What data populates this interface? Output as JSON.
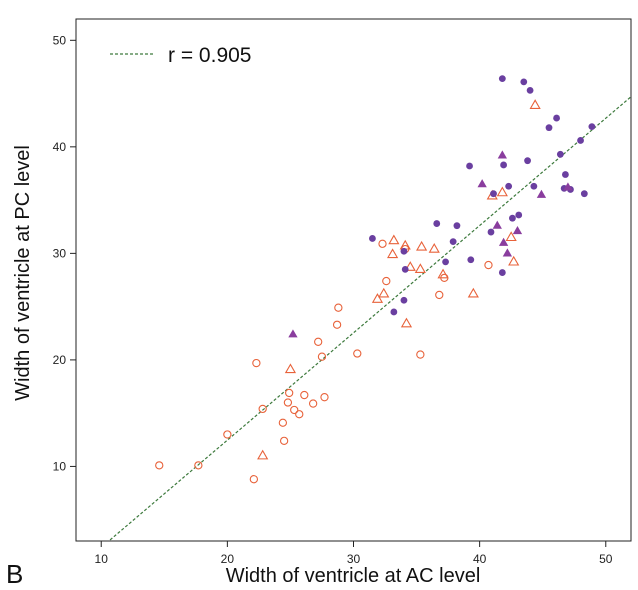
{
  "chart_data": {
    "type": "scatter",
    "panel_label": "B",
    "xlabel": "Width of ventricle at AC level",
    "ylabel": "Width of ventricle at PC level",
    "xlim": [
      8,
      52
    ],
    "ylim": [
      3,
      52
    ],
    "xticks": [
      10,
      20,
      30,
      40,
      50
    ],
    "yticks": [
      10,
      20,
      30,
      40,
      50
    ],
    "grid": false,
    "legend": {
      "placement": "top-left",
      "line_label": "r = 0.905"
    },
    "colors": {
      "orange": "#e8623a",
      "purple": "#6a3fa0",
      "violet": "#8a3d9e",
      "fit": "#3d7a3d"
    },
    "fit_line": {
      "x": [
        10.7,
        52
      ],
      "y": [
        3.1,
        44.7
      ]
    },
    "series": [
      {
        "marker": "open-circle",
        "color": "#e8623a",
        "points": [
          [
            14.6,
            10.1
          ],
          [
            17.7,
            10.1
          ],
          [
            20.0,
            13.0
          ],
          [
            22.1,
            8.8
          ],
          [
            22.3,
            19.7
          ],
          [
            22.8,
            15.4
          ],
          [
            24.4,
            14.1
          ],
          [
            24.5,
            12.4
          ],
          [
            24.8,
            16.0
          ],
          [
            24.9,
            16.9
          ],
          [
            25.3,
            15.3
          ],
          [
            25.7,
            14.9
          ],
          [
            26.1,
            16.7
          ],
          [
            26.8,
            15.9
          ],
          [
            27.2,
            21.7
          ],
          [
            27.5,
            20.3
          ],
          [
            27.7,
            16.5
          ],
          [
            28.7,
            23.3
          ],
          [
            28.8,
            24.9
          ],
          [
            30.3,
            20.6
          ],
          [
            32.3,
            30.9
          ],
          [
            32.6,
            27.4
          ],
          [
            34.1,
            30.4
          ],
          [
            35.3,
            20.5
          ],
          [
            36.8,
            26.1
          ],
          [
            37.2,
            27.7
          ],
          [
            40.7,
            28.9
          ]
        ]
      },
      {
        "marker": "open-triangle",
        "color": "#e8623a",
        "points": [
          [
            22.8,
            11.0
          ],
          [
            25.0,
            19.1
          ],
          [
            31.9,
            25.7
          ],
          [
            32.4,
            26.2
          ],
          [
            33.1,
            29.9
          ],
          [
            33.2,
            31.2
          ],
          [
            34.1,
            30.7
          ],
          [
            34.2,
            23.4
          ],
          [
            34.5,
            28.7
          ],
          [
            35.3,
            28.5
          ],
          [
            35.4,
            30.6
          ],
          [
            36.4,
            30.4
          ],
          [
            37.1,
            28.0
          ],
          [
            39.5,
            26.2
          ],
          [
            41.0,
            35.4
          ],
          [
            41.8,
            35.7
          ],
          [
            42.5,
            31.5
          ],
          [
            42.7,
            29.2
          ],
          [
            44.4,
            43.9
          ]
        ]
      },
      {
        "marker": "filled-circle",
        "color": "#6a3fa0",
        "points": [
          [
            31.5,
            31.4
          ],
          [
            33.2,
            24.5
          ],
          [
            34.0,
            25.6
          ],
          [
            34.0,
            30.2
          ],
          [
            34.1,
            28.5
          ],
          [
            36.6,
            32.8
          ],
          [
            37.3,
            29.2
          ],
          [
            37.9,
            31.1
          ],
          [
            38.2,
            32.6
          ],
          [
            39.2,
            38.2
          ],
          [
            39.3,
            29.4
          ],
          [
            40.9,
            32.0
          ],
          [
            41.1,
            35.6
          ],
          [
            41.8,
            28.2
          ],
          [
            41.8,
            46.4
          ],
          [
            41.9,
            38.3
          ],
          [
            42.3,
            36.3
          ],
          [
            42.6,
            33.3
          ],
          [
            43.1,
            33.6
          ],
          [
            43.5,
            46.1
          ],
          [
            43.8,
            38.7
          ],
          [
            44.0,
            45.3
          ],
          [
            44.3,
            36.3
          ],
          [
            45.5,
            41.8
          ],
          [
            46.1,
            42.7
          ],
          [
            46.4,
            39.3
          ],
          [
            46.7,
            36.1
          ],
          [
            46.8,
            37.4
          ],
          [
            47.2,
            36.0
          ],
          [
            48.0,
            40.6
          ],
          [
            48.3,
            35.6
          ],
          [
            48.9,
            41.9
          ]
        ]
      },
      {
        "marker": "filled-triangle",
        "color": "#8a3d9e",
        "points": [
          [
            25.2,
            22.4
          ],
          [
            40.2,
            36.5
          ],
          [
            41.4,
            32.6
          ],
          [
            41.8,
            39.2
          ],
          [
            41.9,
            31.0
          ],
          [
            42.2,
            30.0
          ],
          [
            43.0,
            32.1
          ],
          [
            44.9,
            35.5
          ],
          [
            47.0,
            36.2
          ]
        ]
      }
    ]
  }
}
